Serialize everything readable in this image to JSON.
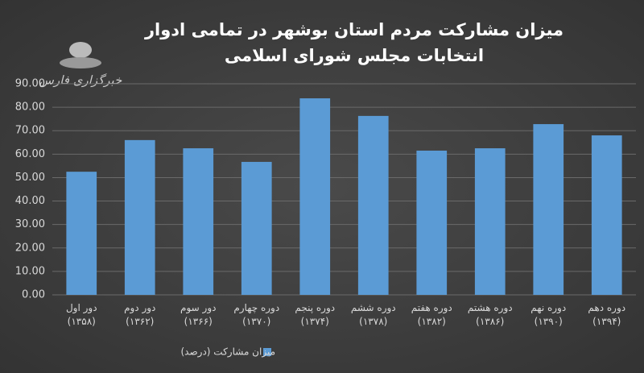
{
  "chart_data": {
    "type": "bar",
    "title": "میزان مشارکت مردم استان بوشهر در تمامی ادوار",
    "subtitle": "انتخابات مجلس شورای اسلامی",
    "logo_text": "خبرگزاری فارس",
    "categories": [
      "دور اول\n(۱۳۵۸)",
      "دور دوم\n(۱۳۶۲)",
      "دور سوم\n(۱۳۶۶)",
      "دوره چهارم\n(۱۳۷۰)",
      "دوره پنجم\n(۱۳۷۴)",
      "دوره ششم\n(۱۳۷۸)",
      "دوره هفتم\n(۱۳۸۲)",
      "دوره هشتم\n(۱۳۸۶)",
      "دوره نهم\n(۱۳۹۰)",
      "دوره دهم\n(۱۳۹۴)"
    ],
    "series": [
      {
        "name": "میزان مشارکت (درصد)",
        "color": "#5b9bd5",
        "values": [
          52.5,
          66,
          62.5,
          56.7,
          83.8,
          76.3,
          61.5,
          62.5,
          72.8,
          68
        ]
      }
    ],
    "ylim": [
      0,
      90
    ],
    "yticks": [
      {
        "value": 0,
        "label": "0.00"
      },
      {
        "value": 10,
        "label": "10.00"
      },
      {
        "value": 20,
        "label": "20.00"
      },
      {
        "value": 30,
        "label": "30.00"
      },
      {
        "value": 40,
        "label": "40.00"
      },
      {
        "value": 50,
        "label": "50.00"
      },
      {
        "value": 60,
        "label": "60.00"
      },
      {
        "value": 70,
        "label": "70.00"
      },
      {
        "value": 80,
        "label": "80.00"
      },
      {
        "value": 90,
        "label": "90.00"
      }
    ],
    "grid": true,
    "legend": "bottom"
  }
}
